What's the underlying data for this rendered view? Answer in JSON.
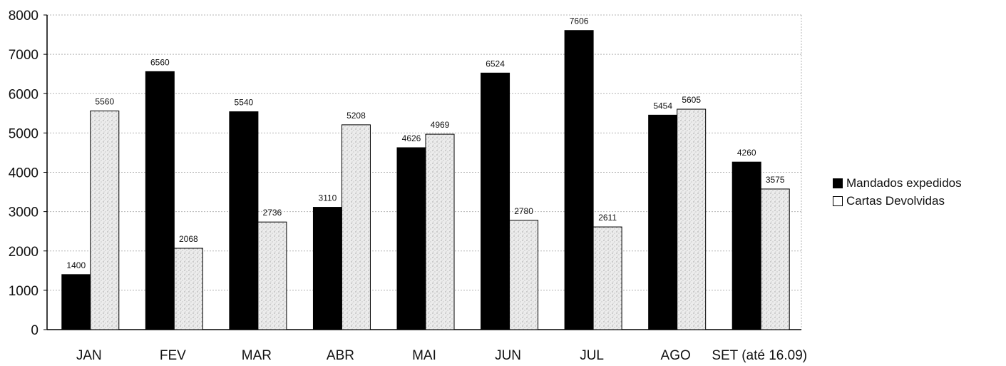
{
  "chart_data": {
    "type": "bar",
    "categories": [
      "JAN",
      "FEV",
      "MAR",
      "ABR",
      "MAI",
      "JUN",
      "JUL",
      "AGO",
      "SET (até 16.09)"
    ],
    "series": [
      {
        "name": "Mandados expedidos",
        "values": [
          1400,
          6560,
          5540,
          3110,
          4626,
          6524,
          7606,
          5454,
          4260
        ],
        "color": "#000000"
      },
      {
        "name": "Cartas Devolvidas",
        "values": [
          5560,
          2068,
          2736,
          5208,
          4969,
          2780,
          2611,
          5605,
          3575
        ],
        "color": "#e6e6e6"
      }
    ],
    "ylim": [
      0,
      8000
    ],
    "yticks": [
      0,
      1000,
      2000,
      3000,
      4000,
      5000,
      6000,
      7000,
      8000
    ],
    "grid": true,
    "legend_position": "right"
  }
}
